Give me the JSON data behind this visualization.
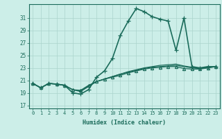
{
  "xlabel": "Humidex (Indice chaleur)",
  "bg_color": "#cceee8",
  "grid_color": "#aad4cc",
  "line_color": "#1a6b5a",
  "xlim": [
    -0.5,
    23.5
  ],
  "ylim": [
    16.5,
    33.2
  ],
  "xticks": [
    0,
    1,
    2,
    3,
    4,
    5,
    6,
    7,
    8,
    9,
    10,
    11,
    12,
    13,
    14,
    15,
    16,
    17,
    18,
    19,
    20,
    21,
    22,
    23
  ],
  "yticks": [
    17,
    19,
    21,
    23,
    25,
    27,
    29,
    31
  ],
  "series": [
    {
      "y": [
        20.5,
        19.8,
        20.5,
        20.4,
        20.2,
        19.0,
        18.8,
        19.5,
        21.5,
        22.5,
        24.5,
        28.2,
        30.5,
        32.5,
        32.0,
        31.2,
        30.8,
        30.5,
        25.8,
        31.0,
        23.2,
        23.0,
        23.2,
        23.2
      ],
      "marker": "+",
      "markersize": 4,
      "lw": 1.2
    },
    {
      "y": [
        20.5,
        19.8,
        20.5,
        20.4,
        20.2,
        19.5,
        19.2,
        20.0,
        20.8,
        21.2,
        21.6,
        22.0,
        22.4,
        22.7,
        23.0,
        23.2,
        23.4,
        23.5,
        23.6,
        23.3,
        23.1,
        22.9,
        23.1,
        23.2
      ],
      "marker": "none",
      "markersize": 0,
      "lw": 0.9
    },
    {
      "y": [
        20.5,
        19.8,
        20.5,
        20.4,
        20.2,
        19.5,
        19.3,
        20.1,
        20.8,
        21.2,
        21.6,
        22.0,
        22.3,
        22.6,
        22.9,
        23.1,
        23.2,
        23.3,
        23.4,
        23.2,
        23.0,
        22.9,
        23.0,
        23.2
      ],
      "marker": "none",
      "markersize": 0,
      "lw": 0.9
    },
    {
      "y": [
        20.5,
        19.8,
        20.5,
        20.4,
        20.2,
        19.5,
        19.4,
        20.2,
        20.8,
        21.2,
        21.5,
        21.8,
        22.2,
        22.5,
        22.8,
        23.0,
        23.1,
        23.2,
        23.2,
        22.9,
        22.8,
        22.8,
        23.0,
        23.2
      ],
      "marker": "^",
      "markersize": 3,
      "lw": 0.9
    }
  ]
}
